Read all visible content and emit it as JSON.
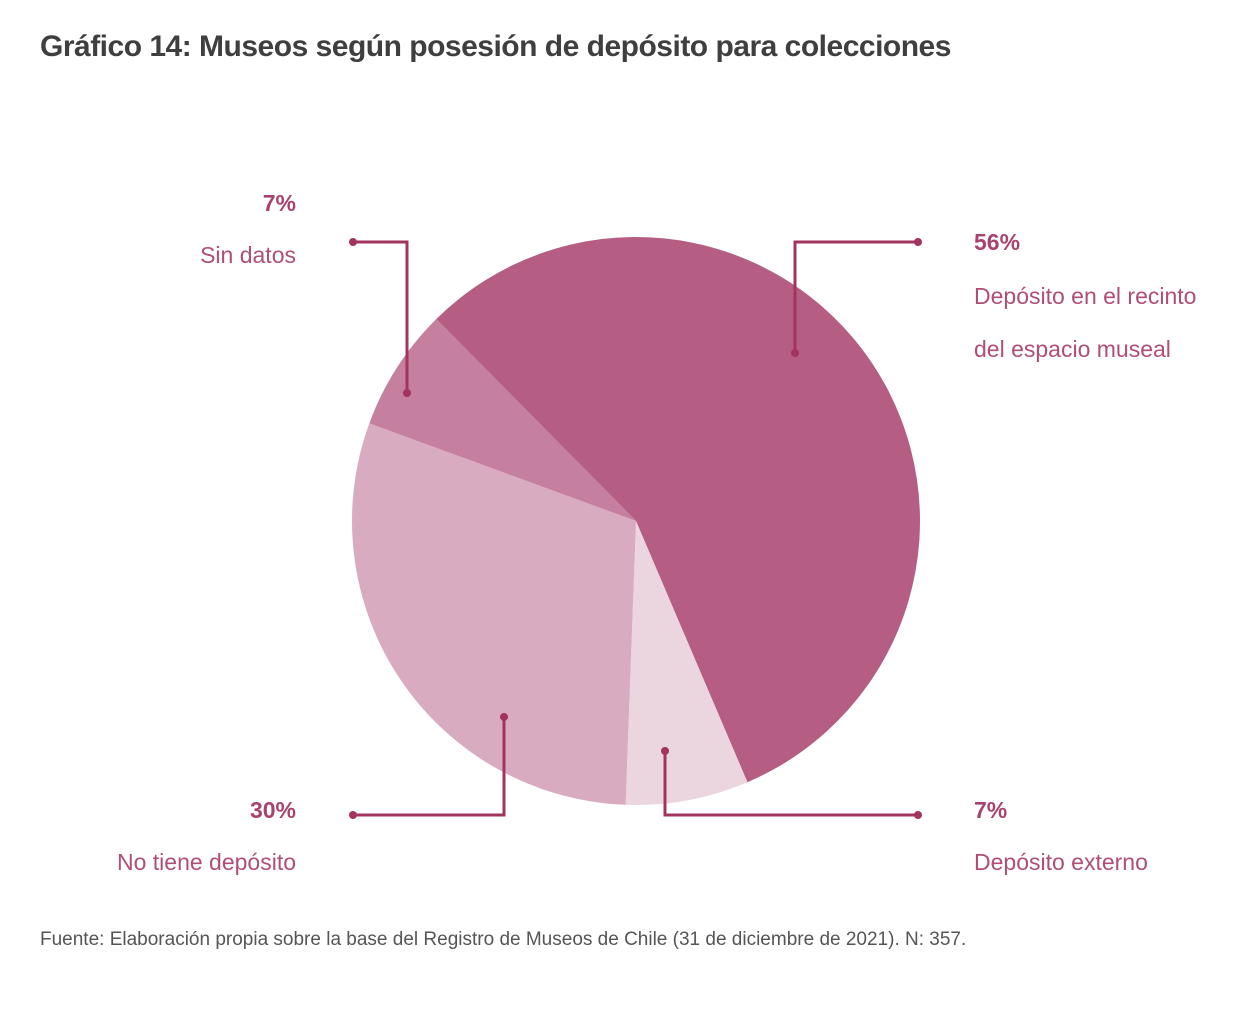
{
  "title": "Gráfico 14: Museos según posesión de depósito para colecciones",
  "source": "Fuente: Elaboración propia sobre la base del Registro de Museos de Chile (31 de diciembre de 2021). N: 357.",
  "colors": {
    "leader_line": "#a2345f"
  },
  "chart_data": {
    "type": "pie",
    "title": "Gráfico 14: Museos según posesión de depósito para colecciones",
    "unit": "%",
    "n": 357,
    "order": "clockwise",
    "slices": [
      {
        "label": "Depósito en el recinto del espacio museal",
        "label_lines": [
          "Depósito en el recinto",
          "del espacio museal"
        ],
        "value": 56,
        "value_label": "56%",
        "color": "#b55d82",
        "legend_position": "top-right"
      },
      {
        "label": "Depósito externo",
        "label_lines": [
          "Depósito externo"
        ],
        "value": 7,
        "value_label": "7%",
        "color": "#ebd5df",
        "legend_position": "bottom-right"
      },
      {
        "label": "No tiene depósito",
        "label_lines": [
          "No tiene depósito"
        ],
        "value": 30,
        "value_label": "30%",
        "color": "#d8abc1",
        "legend_position": "bottom-left"
      },
      {
        "label": "Sin datos",
        "label_lines": [
          "Sin datos"
        ],
        "value": 7,
        "value_label": "7%",
        "color": "#c57f9f",
        "legend_position": "top-left"
      }
    ]
  }
}
